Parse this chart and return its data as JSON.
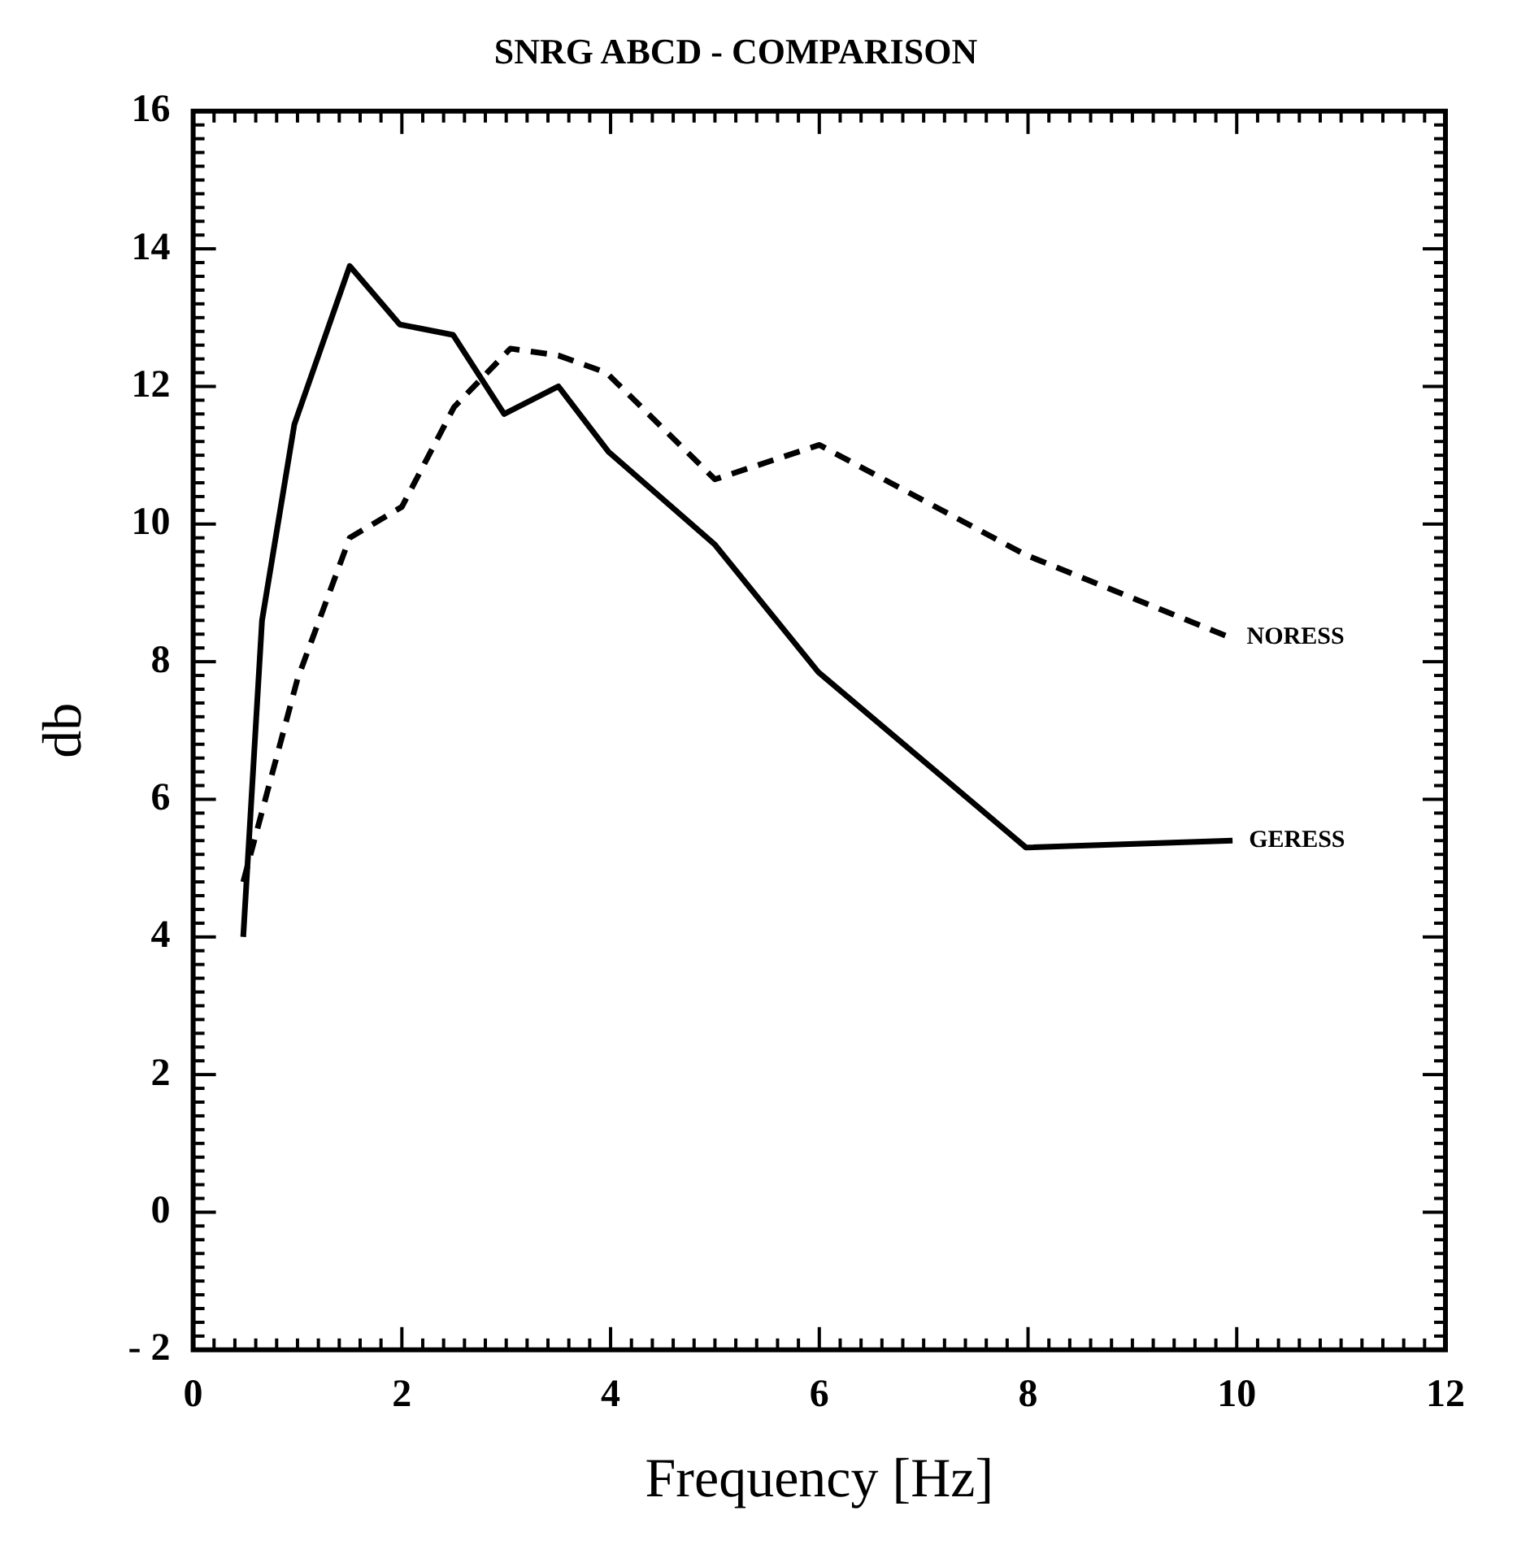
{
  "chart_data": {
    "type": "line",
    "title": "SNRG ABCD - COMPARISON",
    "xlabel": "Frequency [Hz]",
    "ylabel": "db",
    "xlim": [
      0,
      12
    ],
    "xticks": [
      0,
      2,
      4,
      6,
      8,
      10,
      12
    ],
    "ylim": [
      -2,
      16
    ],
    "yticks": [
      {
        "value": -2,
        "label": "- 2"
      },
      0,
      2,
      4,
      6,
      8,
      10,
      12,
      14,
      16
    ],
    "grid": false,
    "legend": false,
    "marker": "none",
    "series": [
      {
        "name": "GERESS",
        "color": "#000000",
        "line_style": "solid",
        "x": [
          0.48,
          0.66,
          0.97,
          1.5,
          1.98,
          2.49,
          2.98,
          3.5,
          3.98,
          5.0,
          5.99,
          7.98,
          9.96
        ],
        "values": [
          4.0,
          8.6,
          11.45,
          13.75,
          12.9,
          12.75,
          11.6,
          12.0,
          11.05,
          9.7,
          7.85,
          5.3,
          5.4
        ]
      },
      {
        "name": "NORESS",
        "color": "#000000",
        "line_style": "dashed",
        "x": [
          0.48,
          1.0,
          1.5,
          2.0,
          2.5,
          3.04,
          3.5,
          3.96,
          5.0,
          6.0,
          7.98,
          9.94
        ],
        "values": [
          4.8,
          7.75,
          9.8,
          10.25,
          11.7,
          12.55,
          12.45,
          12.2,
          10.65,
          11.15,
          9.55,
          8.35
        ]
      }
    ]
  }
}
